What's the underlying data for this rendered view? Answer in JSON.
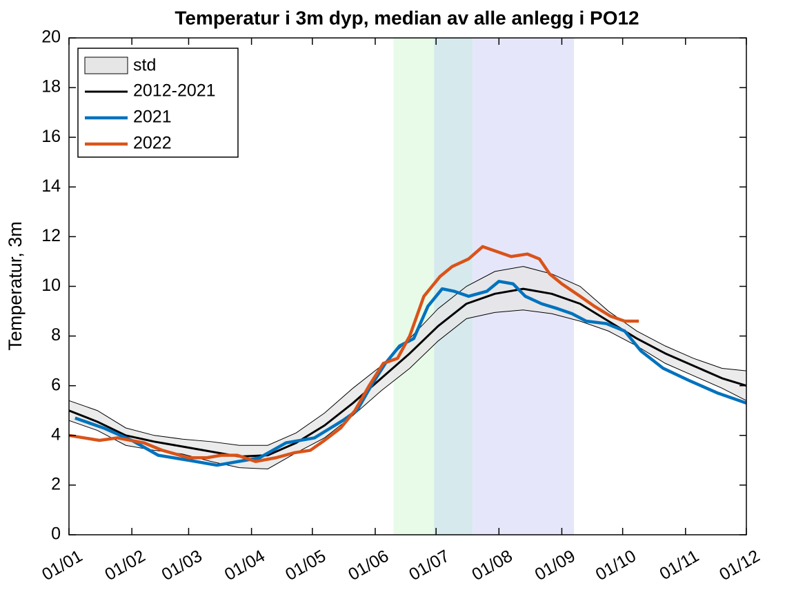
{
  "chart_data": {
    "type": "line",
    "title": "Temperatur i 3m dyp, median av alle anlegg i PO12",
    "ylabel": "Temperatur, 3m",
    "xlim": [
      0,
      334
    ],
    "ylim": [
      0,
      20
    ],
    "xticks": [
      {
        "value": 0,
        "label": "01/01"
      },
      {
        "value": 31,
        "label": "01/02"
      },
      {
        "value": 59,
        "label": "01/03"
      },
      {
        "value": 90,
        "label": "01/04"
      },
      {
        "value": 120,
        "label": "01/05"
      },
      {
        "value": 151,
        "label": "01/06"
      },
      {
        "value": 181,
        "label": "01/07"
      },
      {
        "value": 212,
        "label": "01/08"
      },
      {
        "value": 243,
        "label": "01/09"
      },
      {
        "value": 273,
        "label": "01/10"
      },
      {
        "value": 304,
        "label": "01/11"
      },
      {
        "value": 334,
        "label": "01/12"
      }
    ],
    "yticks": [
      0,
      2,
      4,
      6,
      8,
      10,
      12,
      14,
      16,
      18,
      20
    ],
    "spans": [
      {
        "x": [
          160,
          180
        ],
        "color": "#e8fbe8"
      },
      {
        "x": [
          180,
          199
        ],
        "color": "#d6e9ec"
      },
      {
        "x": [
          199,
          249
        ],
        "color": "#e6e6fb"
      }
    ],
    "band": {
      "name": "std",
      "color": "#e6e6e6",
      "x": [
        0,
        14,
        28,
        42,
        56,
        70,
        84,
        98,
        112,
        126,
        140,
        154,
        168,
        182,
        196,
        210,
        224,
        238,
        252,
        266,
        280,
        294,
        308,
        322,
        334
      ],
      "upper": [
        5.4,
        5.0,
        4.3,
        4.0,
        3.85,
        3.75,
        3.6,
        3.6,
        4.1,
        4.9,
        5.9,
        6.8,
        7.9,
        9.1,
        10.0,
        10.6,
        10.8,
        10.5,
        10.0,
        9.0,
        8.2,
        7.6,
        7.1,
        6.7,
        6.6
      ],
      "lower": [
        4.6,
        4.2,
        3.6,
        3.4,
        3.25,
        2.95,
        2.7,
        2.65,
        3.3,
        3.9,
        4.8,
        5.8,
        6.7,
        7.8,
        8.7,
        8.95,
        9.05,
        8.9,
        8.6,
        8.2,
        7.6,
        6.9,
        6.4,
        5.9,
        5.4
      ]
    },
    "series": [
      {
        "name": "2012-2021",
        "color": "#000000",
        "x": [
          0,
          14,
          28,
          42,
          56,
          70,
          84,
          98,
          112,
          126,
          140,
          154,
          168,
          182,
          196,
          210,
          224,
          238,
          252,
          266,
          280,
          294,
          308,
          322,
          334
        ],
        "values": [
          5.0,
          4.55,
          4.0,
          3.75,
          3.55,
          3.35,
          3.15,
          3.2,
          3.7,
          4.4,
          5.3,
          6.3,
          7.3,
          8.4,
          9.3,
          9.7,
          9.9,
          9.7,
          9.3,
          8.6,
          7.9,
          7.3,
          6.8,
          6.3,
          6.0
        ]
      },
      {
        "name": "2021",
        "color": "#0072bd",
        "x": [
          3,
          17,
          31,
          44,
          59,
          73,
          87,
          94,
          107,
          121,
          129,
          135,
          142,
          149,
          156,
          163,
          170,
          177,
          184,
          190,
          197,
          206,
          212,
          219,
          225,
          233,
          241,
          248,
          255,
          265,
          274,
          282,
          293,
          306,
          320,
          334
        ],
        "values": [
          4.7,
          4.3,
          3.8,
          3.2,
          3.0,
          2.8,
          3.0,
          3.1,
          3.7,
          3.9,
          4.3,
          4.6,
          5.0,
          6.0,
          6.9,
          7.6,
          7.9,
          9.2,
          9.9,
          9.8,
          9.6,
          9.8,
          10.2,
          10.1,
          9.6,
          9.3,
          9.1,
          8.9,
          8.6,
          8.5,
          8.2,
          7.4,
          6.7,
          6.2,
          5.7,
          5.3
        ]
      },
      {
        "name": "2022",
        "color": "#d95319",
        "x": [
          0,
          15,
          24,
          37,
          46,
          59,
          68,
          75,
          83,
          92,
          102,
          111,
          119,
          126,
          134,
          141,
          148,
          155,
          162,
          168,
          175,
          183,
          189,
          197,
          204,
          218,
          226,
          232,
          237,
          243,
          252,
          259,
          267,
          274,
          281
        ],
        "values": [
          4.0,
          3.8,
          3.9,
          3.7,
          3.4,
          3.1,
          3.1,
          3.2,
          3.2,
          2.95,
          3.1,
          3.3,
          3.4,
          3.8,
          4.3,
          5.0,
          6.0,
          6.9,
          7.1,
          8.0,
          9.6,
          10.4,
          10.8,
          11.1,
          11.6,
          11.2,
          11.3,
          11.1,
          10.5,
          10.1,
          9.6,
          9.2,
          8.8,
          8.6,
          8.6
        ]
      }
    ]
  }
}
